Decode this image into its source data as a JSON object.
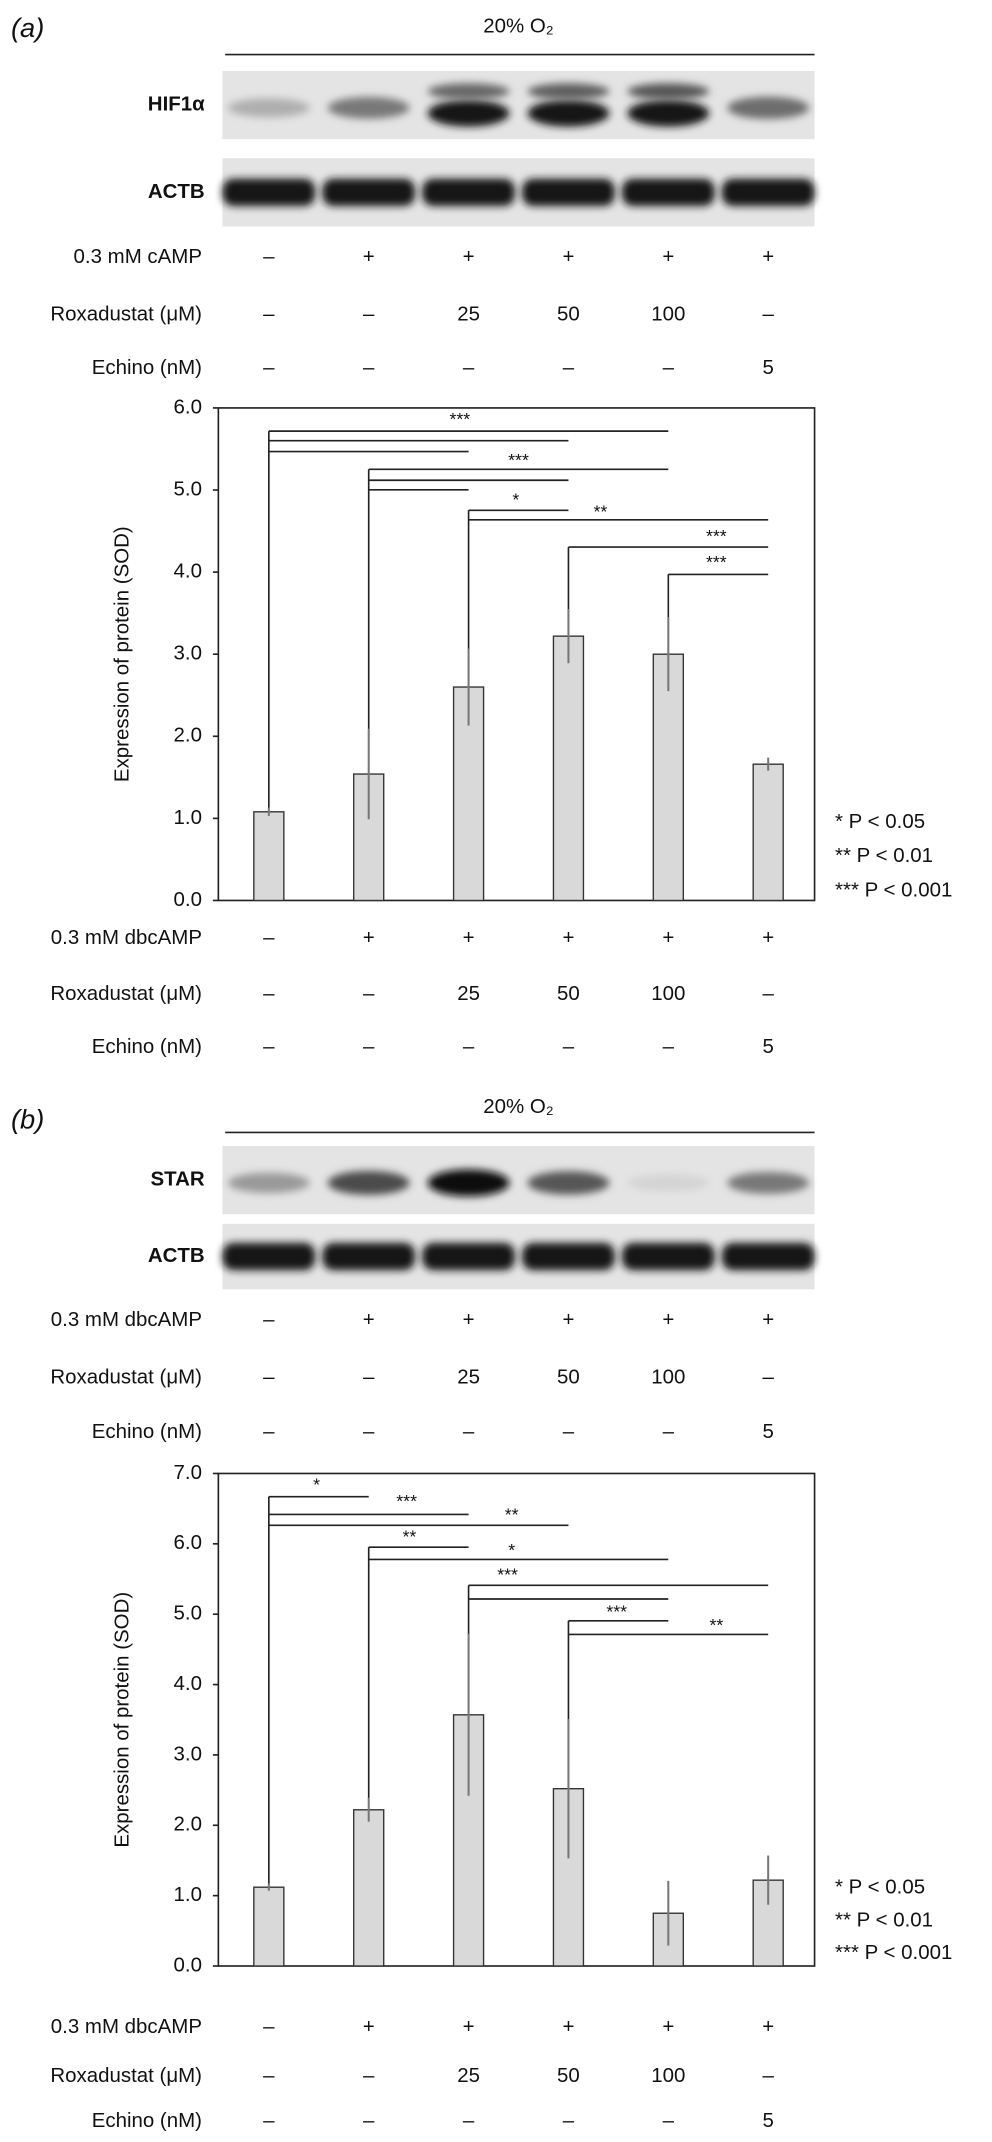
{
  "chart_data": [
    {
      "type": "bar",
      "panel": "(a)",
      "header": "20% O₂",
      "blots": [
        "HIF1α",
        "ACTB"
      ],
      "conditions_top": [
        {
          "label": "0.3 mM cAMP",
          "values": [
            "–",
            "+",
            "+",
            "+",
            "+",
            "+"
          ]
        },
        {
          "label": "Roxadustat (μM)",
          "values": [
            "–",
            "–",
            "25",
            "50",
            "100",
            "–"
          ]
        },
        {
          "label": "Echino (nM)",
          "values": [
            "–",
            "–",
            "–",
            "–",
            "–",
            "5"
          ]
        }
      ],
      "y_label": "Expression of protein (SOD)",
      "values": [
        1.08,
        1.54,
        2.6,
        3.22,
        3.0,
        1.66
      ],
      "errors": [
        0.05,
        0.55,
        0.47,
        0.33,
        0.45,
        0.08
      ],
      "color": "#d9d9d9",
      "ylim": [
        0,
        6
      ],
      "yticks": [
        {
          "value": 0,
          "label": "0.0"
        },
        {
          "value": 1,
          "label": "1.0"
        },
        {
          "value": 2,
          "label": "2.0"
        },
        {
          "value": 3,
          "label": "3.0"
        },
        {
          "value": 4,
          "label": "4.0"
        },
        {
          "value": 5,
          "label": "5.0"
        },
        {
          "value": 6,
          "label": "6.0"
        }
      ],
      "significance": [
        "***",
        "***",
        "*",
        "**",
        "***",
        "***"
      ],
      "conditions_bottom": [
        {
          "label": "0.3 mM dbcAMP",
          "values": [
            "–",
            "+",
            "+",
            "+",
            "+",
            "+"
          ]
        },
        {
          "label": "Roxadustat (μM)",
          "values": [
            "–",
            "–",
            "25",
            "50",
            "100",
            "–"
          ]
        },
        {
          "label": "Echino (nM)",
          "values": [
            "–",
            "–",
            "–",
            "–",
            "–",
            "5"
          ]
        }
      ],
      "legend": [
        "* P < 0.05",
        "** P < 0.01",
        "*** P < 0.001"
      ]
    },
    {
      "type": "bar",
      "panel": "(b)",
      "header": "20% O₂",
      "blots": [
        "STAR",
        "ACTB"
      ],
      "conditions_top": [
        {
          "label": "0.3 mM dbcAMP",
          "values": [
            "–",
            "+",
            "+",
            "+",
            "+",
            "+"
          ]
        },
        {
          "label": "Roxadustat (μM)",
          "values": [
            "–",
            "–",
            "25",
            "50",
            "100",
            "–"
          ]
        },
        {
          "label": "Echino (nM)",
          "values": [
            "–",
            "–",
            "–",
            "–",
            "–",
            "5"
          ]
        }
      ],
      "y_label": "Expression of protein (SOD)",
      "values": [
        1.12,
        2.22,
        3.57,
        2.52,
        0.75,
        1.22
      ],
      "errors": [
        0.05,
        0.17,
        1.15,
        0.99,
        0.46,
        0.35
      ],
      "color": "#d9d9d9",
      "ylim": [
        0,
        7
      ],
      "yticks": [
        {
          "value": 0,
          "label": "0.0"
        },
        {
          "value": 1,
          "label": "1.0"
        },
        {
          "value": 2,
          "label": "2.0"
        },
        {
          "value": 3,
          "label": "3.0"
        },
        {
          "value": 4,
          "label": "4.0"
        },
        {
          "value": 5,
          "label": "5.0"
        },
        {
          "value": 6,
          "label": "6.0"
        },
        {
          "value": 7,
          "label": "7.0"
        }
      ],
      "significance": [
        "*",
        "***",
        "**",
        "**",
        "*",
        "***",
        "***",
        "**"
      ],
      "conditions_bottom": [
        {
          "label": "0.3 mM dbcAMP",
          "values": [
            "–",
            "+",
            "+",
            "+",
            "+",
            "+"
          ]
        },
        {
          "label": "Roxadustat (μM)",
          "values": [
            "–",
            "–",
            "25",
            "50",
            "100",
            "–"
          ]
        },
        {
          "label": "Echino (nM)",
          "values": [
            "–",
            "–",
            "–",
            "–",
            "–",
            "5"
          ]
        }
      ],
      "legend": [
        "* P < 0.05",
        "** P < 0.01",
        "*** P < 0.001"
      ]
    }
  ]
}
